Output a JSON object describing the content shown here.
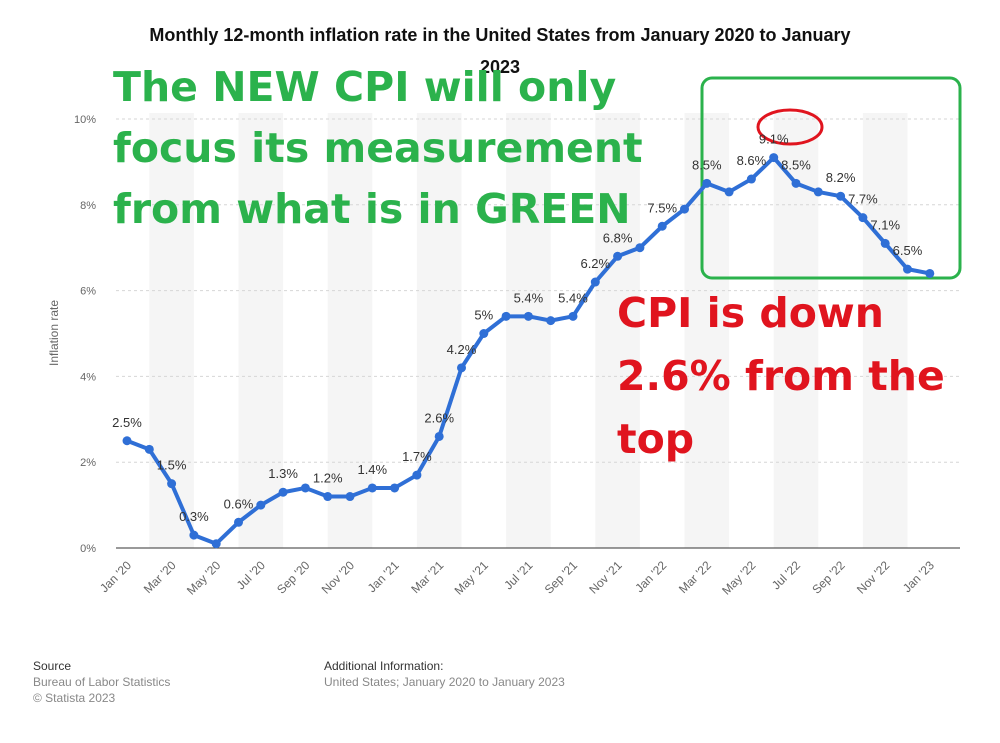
{
  "chart_data": {
    "type": "line",
    "title_line1": "Monthly 12-month inflation rate in the United States from January 2020 to January",
    "title_line2": "2023",
    "ylabel": "Inflation rate",
    "ylim": [
      0,
      10
    ],
    "yticks": [
      "0%",
      "2%",
      "4%",
      "6%",
      "8%",
      "10%"
    ],
    "x_tick_labels": [
      "Jan '20",
      "Mar '20",
      "May '20",
      "Jul '20",
      "Sep '20",
      "Nov '20",
      "Jan '21",
      "Mar '21",
      "May '21",
      "Jul '21",
      "Sep '21",
      "Nov '21",
      "Jan '22",
      "Mar '22",
      "May '22",
      "Jul '22",
      "Sep '22",
      "Nov '22",
      "Jan '23"
    ],
    "values": [
      2.5,
      2.3,
      1.5,
      0.3,
      0.1,
      0.6,
      1.0,
      1.3,
      1.4,
      1.2,
      1.2,
      1.4,
      1.4,
      1.7,
      2.6,
      4.2,
      5.0,
      5.4,
      5.4,
      5.3,
      5.4,
      6.2,
      6.8,
      7.0,
      7.5,
      7.9,
      8.5,
      8.3,
      8.6,
      9.1,
      8.5,
      8.3,
      8.2,
      7.7,
      7.1,
      6.5,
      6.4
    ],
    "data_labels": [
      {
        "index": 0,
        "text": "2.5%"
      },
      {
        "index": 2,
        "text": "1.5%"
      },
      {
        "index": 3,
        "text": "0.3%"
      },
      {
        "index": 5,
        "text": "0.6%"
      },
      {
        "index": 7,
        "text": "1.3%"
      },
      {
        "index": 9,
        "text": "1.2%"
      },
      {
        "index": 11,
        "text": "1.4%"
      },
      {
        "index": 13,
        "text": "1.7%"
      },
      {
        "index": 14,
        "text": "2.6%"
      },
      {
        "index": 15,
        "text": "4.2%"
      },
      {
        "index": 16,
        "text": "5%"
      },
      {
        "index": 18,
        "text": "5.4%"
      },
      {
        "index": 20,
        "text": "5.4%"
      },
      {
        "index": 21,
        "text": "6.2%"
      },
      {
        "index": 22,
        "text": "6.8%"
      },
      {
        "index": 24,
        "text": "7.5%"
      },
      {
        "index": 26,
        "text": "8.5%"
      },
      {
        "index": 28,
        "text": "8.6%"
      },
      {
        "index": 29,
        "text": "9.1%"
      },
      {
        "index": 30,
        "text": "8.5%"
      },
      {
        "index": 32,
        "text": "8.2%"
      },
      {
        "index": 33,
        "text": "7.7%"
      },
      {
        "index": 34,
        "text": "7.1%"
      },
      {
        "index": 35,
        "text": "6.5%"
      }
    ],
    "grid": true,
    "line_color": "#2f6fd6"
  },
  "annotations": {
    "green_text": [
      "The NEW CPI will only",
      "focus its measurement",
      "from what is in GREEN"
    ],
    "red_text": [
      "CPI is down",
      "2.6% from the",
      "top"
    ],
    "green_color": "#2bb24c",
    "red_color": "#e0141e"
  },
  "footer": {
    "source_head": "Source",
    "source_line1": "Bureau of Labor Statistics",
    "source_line2": "© Statista 2023",
    "info_head": "Additional Information:",
    "info_line1": "United States; January 2020 to January 2023"
  }
}
